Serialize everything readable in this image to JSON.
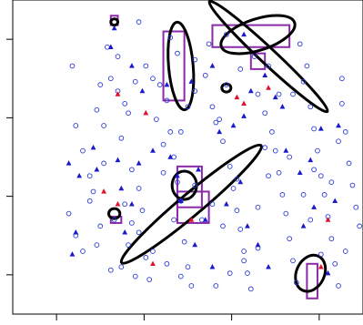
{
  "chart_data": {
    "type": "scatter",
    "title": "",
    "xlabel": "",
    "ylabel": "",
    "xlim": [
      0,
      100
    ],
    "ylim": [
      0,
      100
    ],
    "x_ticks": [
      12.5,
      37.5,
      62.5,
      87.5
    ],
    "y_ticks": [
      12.5,
      37.5,
      62.5,
      87.5
    ],
    "grid": false,
    "legend": "none",
    "colors": {
      "circle": "#2a3bd6",
      "blue_triangle": "#1a1acc",
      "red_triangle": "#e0112b",
      "rectangle": "#8a2aa8",
      "ellipse": "#000000"
    },
    "series": [
      {
        "marker": "open-circle",
        "color": "#2a3bd6",
        "points": [
          [
            17,
            79
          ],
          [
            18,
            60
          ],
          [
            20,
            52
          ],
          [
            22,
            44
          ],
          [
            23,
            39
          ],
          [
            25,
            28
          ],
          [
            24,
            22
          ],
          [
            27,
            85
          ],
          [
            30,
            71
          ],
          [
            31,
            56
          ],
          [
            32,
            67
          ],
          [
            33,
            64
          ],
          [
            34,
            46
          ],
          [
            36,
            40
          ],
          [
            37,
            33
          ],
          [
            38,
            18
          ],
          [
            39,
            11
          ],
          [
            40,
            75
          ],
          [
            42,
            73
          ],
          [
            44,
            68
          ],
          [
            45,
            58
          ],
          [
            46,
            50
          ],
          [
            47,
            42
          ],
          [
            48,
            36
          ],
          [
            49,
            23
          ],
          [
            50,
            15
          ],
          [
            51,
            9
          ],
          [
            30,
            82
          ],
          [
            28,
            75
          ],
          [
            35,
            74
          ],
          [
            16,
            32
          ],
          [
            18,
            25
          ],
          [
            20,
            20
          ],
          [
            22,
            36
          ],
          [
            26,
            48
          ],
          [
            29,
            30
          ],
          [
            31,
            15
          ],
          [
            33,
            22
          ],
          [
            35,
            12
          ],
          [
            41,
            62
          ],
          [
            43,
            54
          ],
          [
            45,
            88
          ],
          [
            47,
            83
          ],
          [
            52,
            81
          ],
          [
            55,
            76
          ],
          [
            57,
            66
          ],
          [
            59,
            62
          ],
          [
            60,
            55
          ],
          [
            62,
            47
          ],
          [
            63,
            40
          ],
          [
            64,
            33
          ],
          [
            65,
            27
          ],
          [
            66,
            20
          ],
          [
            67,
            13
          ],
          [
            68,
            8
          ],
          [
            70,
            70
          ],
          [
            72,
            64
          ],
          [
            74,
            58
          ],
          [
            75,
            52
          ],
          [
            76,
            45
          ],
          [
            77,
            38
          ],
          [
            78,
            32
          ],
          [
            79,
            24
          ],
          [
            80,
            17
          ],
          [
            81,
            10
          ],
          [
            83,
            74
          ],
          [
            85,
            66
          ],
          [
            86,
            59
          ],
          [
            87,
            52
          ],
          [
            88,
            44
          ],
          [
            89,
            38
          ],
          [
            90,
            31
          ],
          [
            91,
            24
          ],
          [
            92,
            16
          ],
          [
            93,
            9
          ],
          [
            56,
            86
          ],
          [
            61,
            89
          ],
          [
            69,
            82
          ],
          [
            73,
            79
          ],
          [
            82,
            86
          ],
          [
            84,
            79
          ],
          [
            94,
            67
          ],
          [
            95,
            58
          ],
          [
            96,
            48
          ],
          [
            97,
            41
          ],
          [
            98,
            34
          ],
          [
            99,
            28
          ],
          [
            38,
            79
          ],
          [
            26,
            60
          ],
          [
            25,
            73
          ],
          [
            58,
            9
          ],
          [
            62,
            13
          ],
          [
            66,
            17
          ],
          [
            70,
            21
          ],
          [
            36,
            93
          ],
          [
            24,
            65
          ],
          [
            43,
            45
          ],
          [
            52,
            41
          ],
          [
            54,
            30
          ],
          [
            57,
            35
          ],
          [
            48,
            58
          ],
          [
            50,
            66
          ],
          [
            52,
            71
          ],
          [
            61,
            73
          ],
          [
            65,
            78
          ],
          [
            72,
            53
          ],
          [
            79,
            50
          ],
          [
            85,
            30
          ],
          [
            88,
            19
          ],
          [
            58,
            61
          ],
          [
            64,
            43
          ],
          [
            83,
            38
          ],
          [
            86,
            46
          ],
          [
            91,
            42
          ],
          [
            93,
            55
          ],
          [
            94,
            75
          ],
          [
            76,
            70
          ],
          [
            46,
            30
          ],
          [
            36,
            26
          ],
          [
            40,
            20
          ],
          [
            44,
            16
          ],
          [
            48,
            12
          ],
          [
            28,
            14
          ],
          [
            32,
            35
          ],
          [
            34,
            29
          ],
          [
            60,
            28
          ],
          [
            73,
            44
          ],
          [
            80,
            70
          ],
          [
            95,
            20
          ],
          [
            70,
            34
          ]
        ]
      },
      {
        "marker": "filled-triangle",
        "color": "#1a1acc",
        "points": [
          [
            28,
            85
          ],
          [
            34,
            79
          ],
          [
            37,
            71
          ],
          [
            44,
            73
          ],
          [
            51,
            74
          ],
          [
            57,
            79
          ],
          [
            59,
            58
          ],
          [
            63,
            60
          ],
          [
            66,
            63
          ],
          [
            68,
            71
          ],
          [
            72,
            76
          ],
          [
            75,
            69
          ],
          [
            77,
            66
          ],
          [
            85,
            49
          ],
          [
            93,
            60
          ],
          [
            82,
            45
          ],
          [
            92,
            36
          ],
          [
            86,
            34
          ],
          [
            16,
            48
          ],
          [
            19,
            44
          ],
          [
            23,
            53
          ],
          [
            24,
            46
          ],
          [
            30,
            49
          ],
          [
            31,
            40
          ],
          [
            36,
            48
          ],
          [
            40,
            52
          ],
          [
            45,
            50
          ],
          [
            47,
            44
          ],
          [
            53,
            46
          ],
          [
            55,
            30
          ],
          [
            65,
            42
          ],
          [
            67,
            28
          ],
          [
            70,
            22
          ],
          [
            73,
            15
          ],
          [
            17,
            19
          ],
          [
            18,
            26
          ],
          [
            32,
            26
          ],
          [
            34,
            35
          ],
          [
            48,
            36
          ],
          [
            52,
            22
          ],
          [
            57,
            15
          ],
          [
            61,
            35
          ],
          [
            78,
            52
          ],
          [
            83,
            28
          ],
          [
            88,
            59
          ],
          [
            90,
            13
          ],
          [
            29,
            91
          ],
          [
            66,
            89
          ]
        ]
      },
      {
        "marker": "filled-triangle",
        "color": "#e0112b",
        "points": [
          [
            30,
            70
          ],
          [
            38,
            64
          ],
          [
            66,
            67
          ],
          [
            73,
            72
          ],
          [
            26,
            39
          ],
          [
            30,
            35
          ],
          [
            51,
            30
          ],
          [
            40,
            16
          ],
          [
            90,
            30
          ],
          [
            88,
            15
          ],
          [
            64,
            69
          ]
        ]
      }
    ],
    "rectangles": [
      {
        "x": [
          43,
          49
        ],
        "y": [
          68,
          90
        ]
      },
      {
        "x": [
          57,
          79
        ],
        "y": [
          85,
          92
        ]
      },
      {
        "x": [
          68,
          72
        ],
        "y": [
          78,
          83
        ]
      },
      {
        "x": [
          47,
          54
        ],
        "y": [
          34,
          47
        ]
      },
      {
        "x": [
          47,
          56
        ],
        "y": [
          29,
          39
        ]
      },
      {
        "x": [
          28,
          31
        ],
        "y": [
          29,
          31
        ]
      },
      {
        "x": [
          84,
          87
        ],
        "y": [
          5,
          16
        ]
      },
      {
        "x": [
          28,
          30
        ],
        "y": [
          92,
          95
        ]
      }
    ],
    "ellipses": [
      {
        "cx": 48,
        "cy": 79,
        "rx": 3.5,
        "ry": 14,
        "angle": -5
      },
      {
        "cx": 70,
        "cy": 89,
        "rx": 11,
        "ry": 5,
        "angle": -18
      },
      {
        "cx": 73,
        "cy": 82,
        "rx": 23,
        "ry": 2.5,
        "angle": 43
      },
      {
        "cx": 51,
        "cy": 35,
        "rx": 26,
        "ry": 3.5,
        "angle": -40
      },
      {
        "cx": 49,
        "cy": 41,
        "rx": 3.5,
        "ry": 4.5,
        "angle": 0
      },
      {
        "cx": 85,
        "cy": 13,
        "rx": 4,
        "ry": 6,
        "angle": 25
      },
      {
        "cx": 61,
        "cy": 72,
        "rx": 1.3,
        "ry": 1.3,
        "angle": 0
      },
      {
        "cx": 29,
        "cy": 32,
        "rx": 1.6,
        "ry": 1.6,
        "angle": 0
      },
      {
        "cx": 29,
        "cy": 93,
        "rx": 1.0,
        "ry": 1.0,
        "angle": 0
      }
    ]
  }
}
